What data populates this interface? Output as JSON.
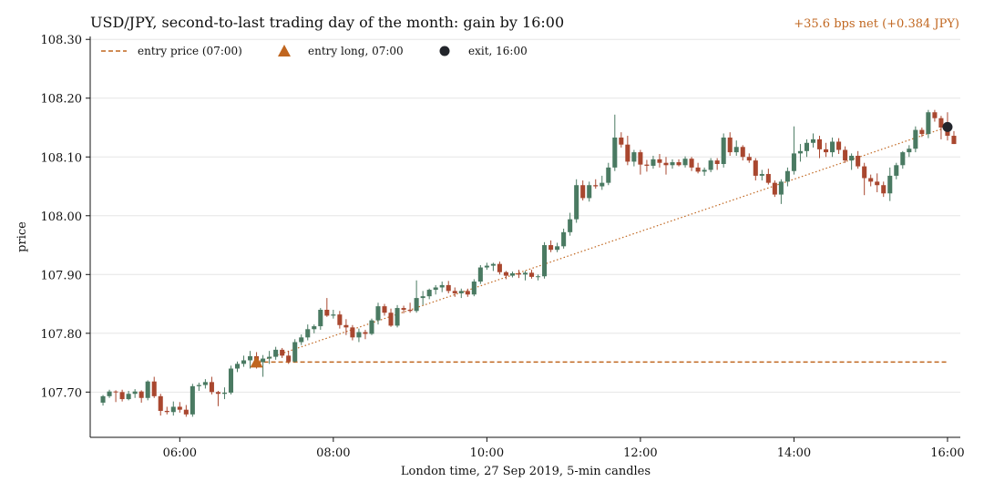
{
  "chart_data": {
    "type": "candlestick",
    "title": "USD/JPY, second-to-last trading day of the month: gain by 16:00",
    "subtitle": "+35.6 bps net (+0.384 JPY)",
    "xlabel": "London time, 27 Sep 2019, 5-min candles",
    "ylabel": "price",
    "xlim": [
      "04:50",
      "16:10"
    ],
    "ylim": [
      107.623,
      108.305
    ],
    "x_ticks": [
      "06:00",
      "08:00",
      "10:00",
      "12:00",
      "14:00",
      "16:00"
    ],
    "y_ticks": [
      "107.70",
      "107.80",
      "107.90",
      "108.00",
      "108.10",
      "108.20",
      "108.30"
    ],
    "grid": "horizontal",
    "legend_position": "top-left",
    "legend": [
      {
        "label": "entry price (07:00)",
        "marker": "dashed-line"
      },
      {
        "label": "entry long, 07:00",
        "marker": "triangle"
      },
      {
        "label": "exit, 16:00",
        "marker": "circle"
      }
    ],
    "colors": {
      "up": "#4a7a62",
      "down": "#a9472f",
      "accent": "#c0661f",
      "exit": "#22252b",
      "grid": "#e6e6e6"
    },
    "entry": {
      "time": "07:00",
      "price": 107.751
    },
    "exit": {
      "time": "16:00",
      "price": 108.151
    },
    "candle_interval_minutes": 5,
    "start_time": "05:00",
    "candles": [
      [
        107.682,
        107.695,
        107.677,
        107.693
      ],
      [
        107.693,
        107.704,
        107.69,
        107.701
      ],
      [
        107.701,
        107.703,
        107.683,
        107.7
      ],
      [
        107.7,
        107.704,
        107.684,
        107.688
      ],
      [
        107.688,
        107.702,
        107.686,
        107.697
      ],
      [
        107.697,
        107.705,
        107.69,
        107.701
      ],
      [
        107.701,
        107.703,
        107.682,
        107.69
      ],
      [
        107.69,
        107.72,
        107.686,
        107.718
      ],
      [
        107.718,
        107.726,
        107.69,
        107.693
      ],
      [
        107.693,
        107.697,
        107.66,
        107.668
      ],
      [
        107.668,
        107.675,
        107.662,
        107.666
      ],
      [
        107.666,
        107.684,
        107.66,
        107.675
      ],
      [
        107.675,
        107.683,
        107.665,
        107.67
      ],
      [
        107.67,
        107.678,
        107.658,
        107.662
      ],
      [
        107.662,
        107.714,
        107.658,
        107.71
      ],
      [
        107.71,
        107.716,
        107.702,
        107.712
      ],
      [
        107.712,
        107.722,
        107.706,
        107.717
      ],
      [
        107.717,
        107.726,
        107.696,
        107.7
      ],
      [
        107.7,
        107.702,
        107.676,
        107.697
      ],
      [
        107.697,
        107.708,
        107.688,
        107.699
      ],
      [
        107.699,
        107.745,
        107.696,
        107.74
      ],
      [
        107.74,
        107.752,
        107.734,
        107.748
      ],
      [
        107.748,
        107.762,
        107.743,
        107.754
      ],
      [
        107.754,
        107.77,
        107.74,
        107.761
      ],
      [
        107.761,
        107.768,
        107.74,
        107.751
      ],
      [
        107.751,
        107.763,
        107.726,
        107.757
      ],
      [
        107.757,
        107.77,
        107.748,
        107.76
      ],
      [
        107.76,
        107.777,
        107.755,
        107.772
      ],
      [
        107.772,
        107.775,
        107.758,
        107.762
      ],
      [
        107.762,
        107.77,
        107.748,
        107.752
      ],
      [
        107.752,
        107.79,
        107.75,
        107.785
      ],
      [
        107.785,
        107.798,
        107.78,
        107.793
      ],
      [
        107.793,
        107.815,
        107.788,
        107.807
      ],
      [
        107.807,
        107.815,
        107.8,
        107.812
      ],
      [
        107.812,
        107.843,
        107.806,
        107.84
      ],
      [
        107.84,
        107.86,
        107.828,
        107.83
      ],
      [
        107.83,
        107.84,
        107.825,
        107.832
      ],
      [
        107.832,
        107.838,
        107.808,
        107.814
      ],
      [
        107.814,
        107.824,
        107.797,
        107.81
      ],
      [
        107.81,
        107.814,
        107.788,
        107.793
      ],
      [
        107.793,
        107.808,
        107.785,
        107.802
      ],
      [
        107.802,
        107.806,
        107.79,
        107.799
      ],
      [
        107.799,
        107.825,
        107.797,
        107.822
      ],
      [
        107.822,
        107.852,
        107.815,
        107.846
      ],
      [
        107.846,
        107.85,
        107.83,
        107.835
      ],
      [
        107.835,
        107.842,
        107.811,
        107.813
      ],
      [
        107.813,
        107.848,
        107.81,
        107.843
      ],
      [
        107.843,
        107.847,
        107.834,
        107.84
      ],
      [
        107.84,
        107.852,
        107.835,
        107.838
      ],
      [
        107.838,
        107.89,
        107.835,
        107.86
      ],
      [
        107.86,
        107.872,
        107.848,
        107.863
      ],
      [
        107.863,
        107.876,
        107.858,
        107.874
      ],
      [
        107.874,
        107.882,
        107.866,
        107.878
      ],
      [
        107.878,
        107.888,
        107.87,
        107.882
      ],
      [
        107.882,
        107.889,
        107.868,
        107.872
      ],
      [
        107.872,
        107.878,
        107.862,
        107.868
      ],
      [
        107.868,
        107.876,
        107.86,
        107.872
      ],
      [
        107.872,
        107.876,
        107.862,
        107.866
      ],
      [
        107.866,
        107.892,
        107.863,
        107.888
      ],
      [
        107.888,
        107.916,
        107.884,
        107.912
      ],
      [
        107.912,
        107.92,
        107.908,
        107.915
      ],
      [
        107.915,
        107.92,
        107.906,
        107.918
      ],
      [
        107.918,
        107.922,
        107.9,
        107.904
      ],
      [
        107.904,
        107.906,
        107.892,
        107.898
      ],
      [
        107.898,
        107.905,
        107.895,
        107.902
      ],
      [
        107.902,
        107.908,
        107.894,
        107.9
      ],
      [
        107.9,
        107.906,
        107.89,
        107.903
      ],
      [
        107.903,
        107.908,
        107.893,
        107.896
      ],
      [
        107.896,
        107.9,
        107.89,
        107.897
      ],
      [
        107.897,
        107.955,
        107.893,
        107.95
      ],
      [
        107.95,
        107.958,
        107.938,
        107.942
      ],
      [
        107.942,
        107.954,
        107.938,
        107.948
      ],
      [
        107.948,
        107.978,
        107.944,
        107.972
      ],
      [
        107.972,
        108.005,
        107.966,
        107.994
      ],
      [
        107.994,
        108.062,
        107.988,
        108.052
      ],
      [
        108.052,
        108.06,
        108.026,
        108.03
      ],
      [
        108.03,
        108.058,
        108.024,
        108.052
      ],
      [
        108.052,
        108.062,
        108.046,
        108.05
      ],
      [
        108.05,
        108.068,
        108.044,
        108.056
      ],
      [
        108.056,
        108.09,
        108.052,
        108.082
      ],
      [
        108.082,
        108.172,
        108.076,
        108.133
      ],
      [
        108.133,
        108.142,
        108.116,
        108.121
      ],
      [
        108.121,
        108.136,
        108.086,
        108.092
      ],
      [
        108.092,
        108.112,
        108.084,
        108.108
      ],
      [
        108.108,
        108.112,
        108.07,
        108.087
      ],
      [
        108.087,
        108.095,
        108.075,
        108.085
      ],
      [
        108.085,
        108.102,
        108.08,
        108.096
      ],
      [
        108.096,
        108.105,
        108.082,
        108.09
      ],
      [
        108.09,
        108.1,
        108.07,
        108.086
      ],
      [
        108.086,
        108.096,
        108.08,
        108.091
      ],
      [
        108.091,
        108.096,
        108.084,
        108.086
      ],
      [
        108.086,
        108.101,
        108.082,
        108.097
      ],
      [
        108.097,
        108.1,
        108.076,
        108.082
      ],
      [
        108.082,
        108.09,
        108.072,
        108.075
      ],
      [
        108.075,
        108.082,
        108.068,
        108.078
      ],
      [
        108.078,
        108.098,
        108.074,
        108.094
      ],
      [
        108.094,
        108.098,
        108.078,
        108.088
      ],
      [
        108.088,
        108.14,
        108.082,
        108.133
      ],
      [
        108.133,
        108.142,
        108.102,
        108.108
      ],
      [
        108.108,
        108.128,
        108.102,
        108.117
      ],
      [
        108.117,
        108.12,
        108.094,
        108.1
      ],
      [
        108.1,
        108.106,
        108.09,
        108.094
      ],
      [
        108.094,
        108.098,
        108.06,
        108.068
      ],
      [
        108.068,
        108.078,
        108.06,
        108.071
      ],
      [
        108.071,
        108.08,
        108.053,
        108.056
      ],
      [
        108.056,
        108.06,
        108.032,
        108.036
      ],
      [
        108.036,
        108.062,
        108.02,
        108.058
      ],
      [
        108.058,
        108.082,
        108.05,
        108.076
      ],
      [
        108.076,
        108.152,
        108.07,
        108.106
      ],
      [
        108.106,
        108.122,
        108.092,
        108.11
      ],
      [
        108.11,
        108.13,
        108.1,
        108.124
      ],
      [
        108.124,
        108.14,
        108.116,
        108.13
      ],
      [
        108.13,
        108.136,
        108.098,
        108.113
      ],
      [
        108.113,
        108.124,
        108.1,
        108.108
      ],
      [
        108.108,
        108.133,
        108.1,
        108.126
      ],
      [
        108.126,
        108.132,
        108.105,
        108.112
      ],
      [
        108.112,
        108.118,
        108.09,
        108.094
      ],
      [
        108.094,
        108.106,
        108.078,
        108.102
      ],
      [
        108.102,
        108.11,
        108.08,
        108.084
      ],
      [
        108.084,
        108.09,
        108.035,
        108.064
      ],
      [
        108.064,
        108.07,
        108.05,
        108.058
      ],
      [
        108.058,
        108.072,
        108.04,
        108.052
      ],
      [
        108.052,
        108.058,
        108.032,
        108.038
      ],
      [
        108.038,
        108.082,
        108.025,
        108.068
      ],
      [
        108.068,
        108.09,
        108.062,
        108.086
      ],
      [
        108.086,
        108.11,
        108.08,
        108.108
      ],
      [
        108.108,
        108.12,
        108.1,
        108.114
      ],
      [
        108.114,
        108.152,
        108.108,
        108.146
      ],
      [
        108.146,
        108.15,
        108.134,
        108.139
      ],
      [
        108.139,
        108.18,
        108.132,
        108.176
      ],
      [
        108.176,
        108.18,
        108.16,
        108.166
      ],
      [
        108.166,
        108.17,
        108.13,
        108.15
      ],
      [
        108.15,
        108.176,
        108.128,
        108.136
      ],
      [
        108.136,
        108.144,
        108.122,
        108.122
      ]
    ]
  }
}
